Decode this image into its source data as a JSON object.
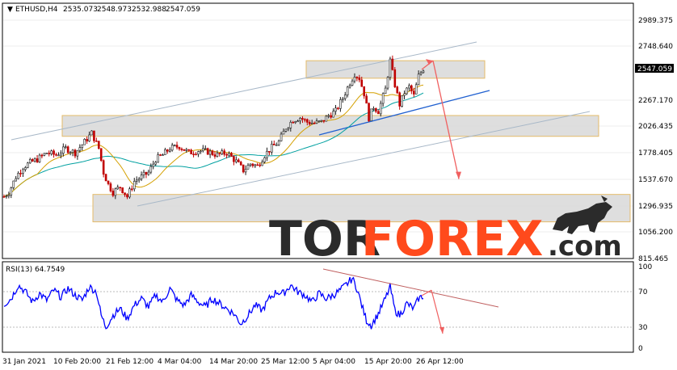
{
  "header": {
    "symbol": "ETHUSD,H4",
    "open": "2535.073",
    "high": "2548.973",
    "low": "2532.988",
    "close": "2547.059"
  },
  "rsi": {
    "label": "RSI(13) 64.7549",
    "levels": [
      "100",
      "70",
      "30",
      "0"
    ]
  },
  "price_axis": {
    "labels": [
      "2989.375",
      "2748.640",
      "2267.170",
      "2026.435",
      "1778.405",
      "1537.670",
      "1296.935",
      "1056.200",
      "815.465"
    ],
    "current_price": "2547.059"
  },
  "time_axis": {
    "labels": [
      "31 Jan 2021",
      "10 Feb 20:00",
      "21 Feb 12:00",
      "4 Mar 04:00",
      "14 Mar 20:00",
      "25 Mar 12:00",
      "5 Apr 04:00",
      "15 Apr 20:00",
      "26 Apr 12:00"
    ]
  },
  "watermark": {
    "part1": "TOR",
    "part2": "FOREX",
    "part3": ".com"
  },
  "colors": {
    "bull": "#1a1a1a",
    "bear": "#c00000",
    "ma_slow": "#00a0a0",
    "ma_fast": "#d4a000",
    "rsi_line": "#0000ff",
    "zone_fill": "#d9d9d9",
    "zone_border": "#e0b050",
    "channel": "#a8b8c8",
    "trend_blue": "#2060d0",
    "forecast": "#f06060",
    "rsi_trend": "#c06060",
    "brand_dark": "#2b2b2b",
    "brand_orange": "#ff4a1c"
  },
  "chart_data": {
    "type": "candlestick",
    "title": "ETHUSD,H4",
    "ylim": [
      815.465,
      3100
    ],
    "x_labels": [
      "31 Jan 2021",
      "10 Feb 20:00",
      "21 Feb 12:00",
      "4 Mar 04:00",
      "14 Mar 20:00",
      "25 Mar 12:00",
      "5 Apr 04:00",
      "15 Apr 20:00",
      "26 Apr 12:00"
    ],
    "close_path": [
      [
        0,
        1380
      ],
      [
        2,
        1420
      ],
      [
        5,
        1560
      ],
      [
        8,
        1650
      ],
      [
        11,
        1690
      ],
      [
        14,
        1720
      ],
      [
        18,
        1780
      ],
      [
        22,
        1760
      ],
      [
        26,
        1820
      ],
      [
        30,
        1780
      ],
      [
        34,
        1880
      ],
      [
        37,
        1960
      ],
      [
        40,
        1820
      ],
      [
        42,
        1600
      ],
      [
        44,
        1490
      ],
      [
        46,
        1420
      ],
      [
        49,
        1470
      ],
      [
        52,
        1380
      ],
      [
        55,
        1520
      ],
      [
        58,
        1560
      ],
      [
        61,
        1600
      ],
      [
        64,
        1720
      ],
      [
        67,
        1760
      ],
      [
        70,
        1820
      ],
      [
        74,
        1840
      ],
      [
        78,
        1780
      ],
      [
        82,
        1800
      ],
      [
        86,
        1790
      ],
      [
        90,
        1760
      ],
      [
        94,
        1780
      ],
      [
        98,
        1700
      ],
      [
        101,
        1620
      ],
      [
        104,
        1680
      ],
      [
        107,
        1660
      ],
      [
        110,
        1760
      ],
      [
        113,
        1830
      ],
      [
        116,
        1880
      ],
      [
        119,
        2010
      ],
      [
        122,
        2080
      ],
      [
        125,
        2100
      ],
      [
        128,
        2060
      ],
      [
        131,
        2050
      ],
      [
        134,
        2060
      ],
      [
        137,
        2120
      ],
      [
        140,
        2160
      ],
      [
        143,
        2280
      ],
      [
        146,
        2420
      ],
      [
        148,
        2500
      ],
      [
        150,
        2460
      ],
      [
        152,
        2320
      ],
      [
        154,
        2100
      ],
      [
        156,
        2200
      ],
      [
        158,
        2160
      ],
      [
        161,
        2360
      ],
      [
        163,
        2620
      ],
      [
        165,
        2400
      ],
      [
        167,
        2220
      ],
      [
        169,
        2330
      ],
      [
        171,
        2380
      ],
      [
        173,
        2300
      ],
      [
        175,
        2480
      ],
      [
        177,
        2547
      ]
    ],
    "support_resistance_zones": [
      {
        "from": 2460,
        "to": 2620
      },
      {
        "from": 1930,
        "to": 2120
      },
      {
        "from": 1150,
        "to": 1400
      }
    ],
    "forecast": {
      "from": 2620,
      "to": 1540
    },
    "rsi_path": [
      [
        0,
        55
      ],
      [
        3,
        62
      ],
      [
        6,
        78
      ],
      [
        9,
        70
      ],
      [
        12,
        58
      ],
      [
        15,
        68
      ],
      [
        18,
        60
      ],
      [
        21,
        72
      ],
      [
        24,
        64
      ],
      [
        27,
        74
      ],
      [
        30,
        66
      ],
      [
        33,
        60
      ],
      [
        36,
        76
      ],
      [
        39,
        70
      ],
      [
        41,
        42
      ],
      [
        43,
        28
      ],
      [
        46,
        42
      ],
      [
        49,
        50
      ],
      [
        52,
        38
      ],
      [
        55,
        54
      ],
      [
        58,
        62
      ],
      [
        61,
        52
      ],
      [
        64,
        66
      ],
      [
        67,
        58
      ],
      [
        70,
        74
      ],
      [
        73,
        60
      ],
      [
        76,
        54
      ],
      [
        79,
        66
      ],
      [
        82,
        58
      ],
      [
        85,
        52
      ],
      [
        88,
        62
      ],
      [
        91,
        56
      ],
      [
        94,
        50
      ],
      [
        97,
        44
      ],
      [
        100,
        32
      ],
      [
        103,
        42
      ],
      [
        106,
        54
      ],
      [
        109,
        48
      ],
      [
        112,
        62
      ],
      [
        115,
        70
      ],
      [
        118,
        68
      ],
      [
        121,
        78
      ],
      [
        124,
        70
      ],
      [
        127,
        66
      ],
      [
        130,
        58
      ],
      [
        133,
        68
      ],
      [
        136,
        62
      ],
      [
        139,
        66
      ],
      [
        142,
        72
      ],
      [
        145,
        80
      ],
      [
        147,
        86
      ],
      [
        149,
        74
      ],
      [
        151,
        54
      ],
      [
        153,
        36
      ],
      [
        155,
        30
      ],
      [
        158,
        44
      ],
      [
        161,
        62
      ],
      [
        163,
        76
      ],
      [
        165,
        48
      ],
      [
        167,
        42
      ],
      [
        170,
        56
      ],
      [
        173,
        50
      ],
      [
        175,
        62
      ],
      [
        177,
        65
      ]
    ]
  }
}
